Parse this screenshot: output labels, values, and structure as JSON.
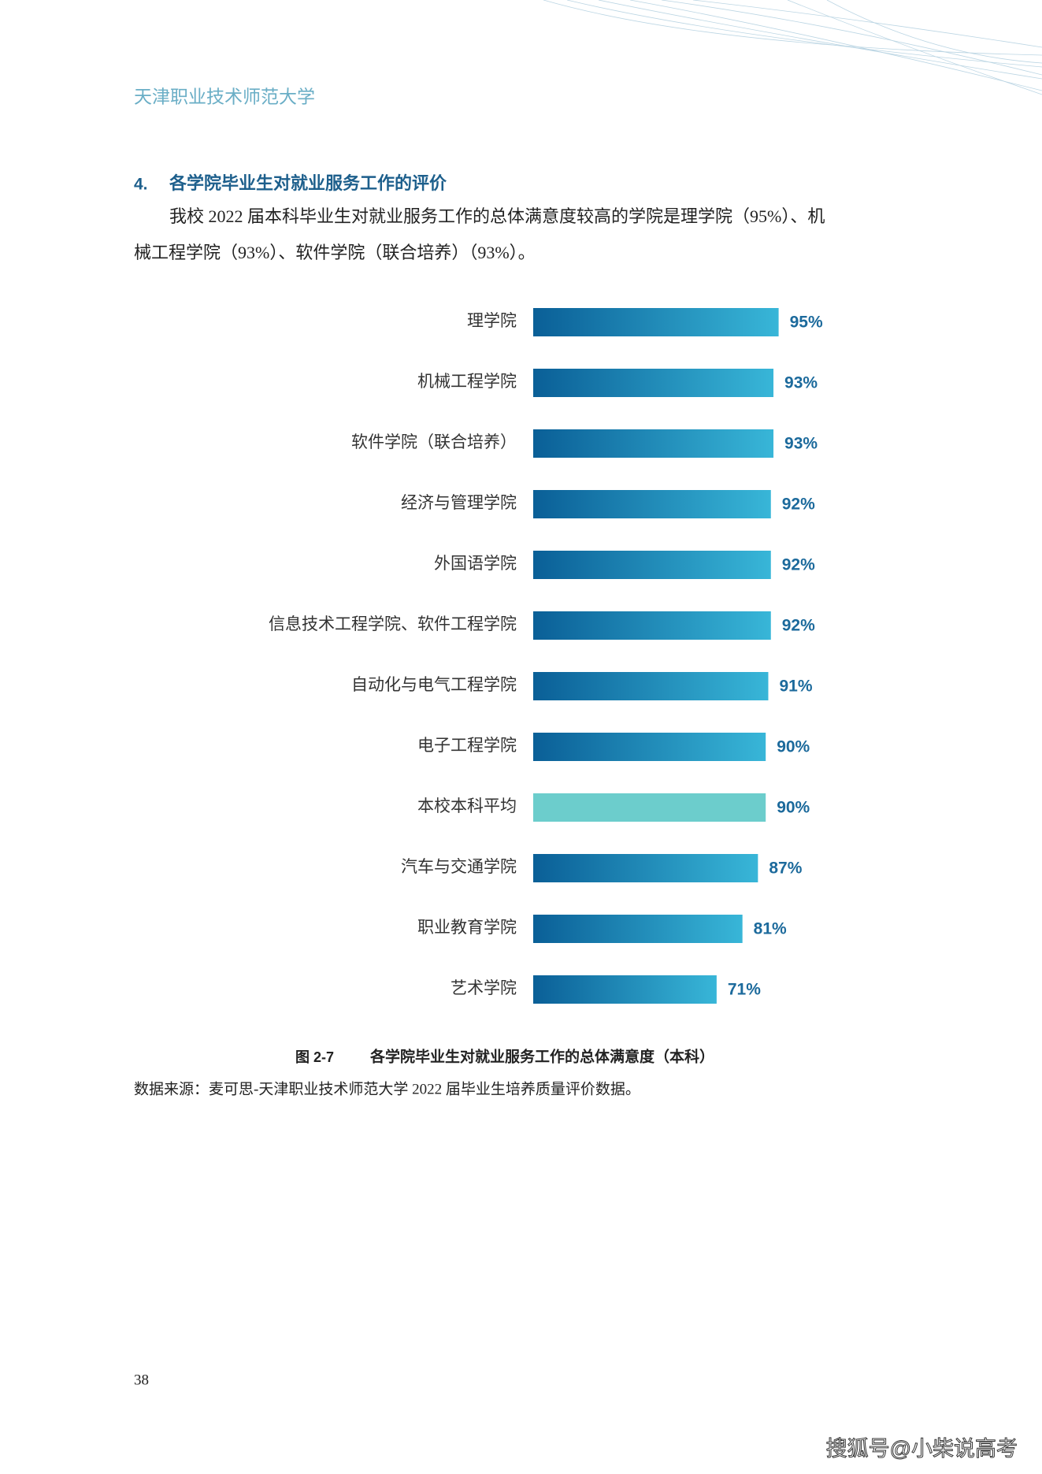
{
  "header": {
    "title": "天津职业技术师范大学"
  },
  "section": {
    "number": "4.",
    "title": "各学院毕业生对就业服务工作的评价"
  },
  "paragraph": {
    "lines": [
      "我校 2022 届本科毕业生对就业服务工作的总体满意度较高的学院是理学院（95%）、机",
      "械工程学院（93%）、软件学院（联合培养）（93%）。"
    ]
  },
  "chart_data": {
    "type": "bar",
    "orientation": "horizontal",
    "categories": [
      "理学院",
      "机械工程学院",
      "软件学院（联合培养）",
      "经济与管理学院",
      "外国语学院",
      "信息技术工程学院、软件工程学院",
      "自动化与电气工程学院",
      "电子工程学院",
      "本校本科平均",
      "汽车与交通学院",
      "职业教育学院",
      "艺术学院"
    ],
    "values": [
      95,
      93,
      93,
      92,
      92,
      92,
      91,
      90,
      90,
      87,
      81,
      71
    ],
    "value_labels": [
      "95%",
      "93%",
      "93%",
      "92%",
      "92%",
      "92%",
      "91%",
      "90%",
      "90%",
      "87%",
      "81%",
      "71%"
    ],
    "color": "#0a5f97",
    "color_end": "#38b6d8",
    "highlight_index": 8,
    "highlight_color": "#6ccdcc"
  },
  "caption": {
    "number": "图 2-7",
    "title": "各学院毕业生对就业服务工作的总体满意度（本科）"
  },
  "source": "数据来源：麦可思-天津职业技术师范大学 2022 届毕业生培养质量评价数据。",
  "page_number": "38",
  "watermark": "搜狐号@小柴说高考"
}
